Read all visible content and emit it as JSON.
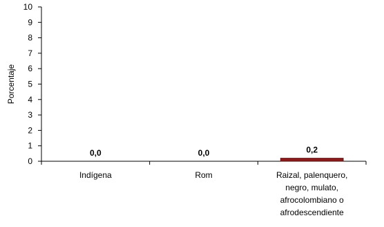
{
  "chart_data": {
    "type": "bar",
    "categories": [
      [
        "Indígena"
      ],
      [
        "Rom"
      ],
      [
        "Raizal, palenquero,",
        "negro, mulato,",
        "afrocolombiano o",
        "afrodescendiente"
      ]
    ],
    "values": [
      0.0,
      0.0,
      0.2
    ],
    "data_labels": [
      "0,0",
      "0,0",
      "0,2"
    ],
    "title": "",
    "xlabel": "",
    "ylabel": "Porcentaje",
    "ylim": [
      0,
      10
    ],
    "yticks": [
      "0",
      "1",
      "2",
      "3",
      "4",
      "5",
      "6",
      "7",
      "8",
      "9",
      "10"
    ],
    "grid": false,
    "legend": "none",
    "bar_color": "#8b1a1a",
    "bar_edge_color": "#5a0f0f"
  }
}
